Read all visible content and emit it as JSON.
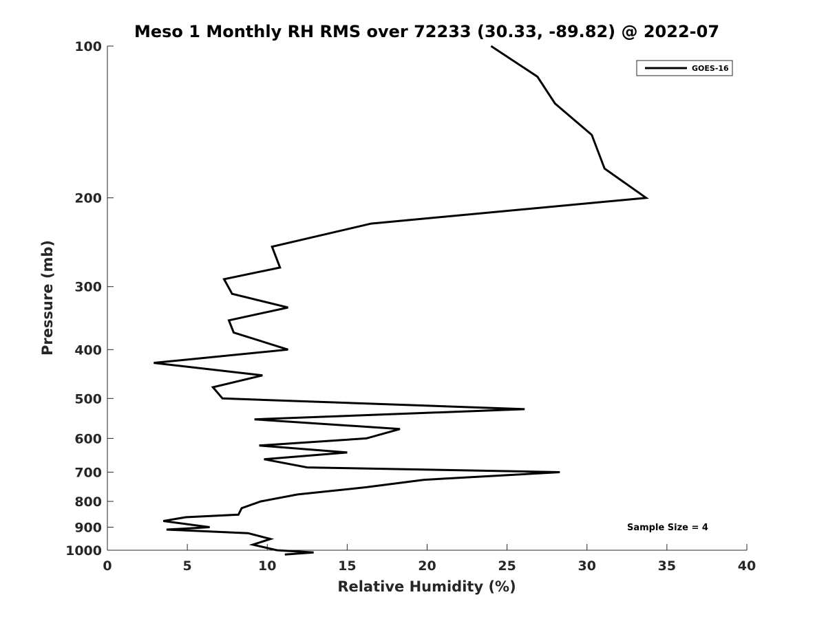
{
  "chart_data": {
    "type": "line",
    "title": "Meso 1 Monthly RH RMS over 72233 (30.33, -89.82) @ 2022-07",
    "xlabel": "Relative Humidity (%)",
    "ylabel": "Pressure (mb)",
    "xlim": [
      0,
      40
    ],
    "ylim": [
      100,
      1000
    ],
    "y_scale": "log",
    "y_reversed": true,
    "grid": false,
    "legend_position": "top-right",
    "xticks": [
      0,
      5,
      10,
      15,
      20,
      25,
      30,
      35,
      40
    ],
    "xtick_labels": [
      "0",
      "5",
      "10",
      "15",
      "20",
      "25",
      "30",
      "35",
      "40"
    ],
    "yticks": [
      100,
      200,
      300,
      400,
      500,
      600,
      700,
      800,
      900,
      1000
    ],
    "ytick_labels": [
      "100",
      "200",
      "300",
      "400",
      "500",
      "600",
      "700",
      "800",
      "900",
      "1000"
    ],
    "series": [
      {
        "name": "GOES-16",
        "color": "#000000",
        "x": [
          24.0,
          26.9,
          28.0,
          30.3,
          31.1,
          33.7,
          16.5,
          10.3,
          10.8,
          7.3,
          7.8,
          11.3,
          7.6,
          7.9,
          11.3,
          2.9,
          9.7,
          6.6,
          7.2,
          26.1,
          9.2,
          18.3,
          16.2,
          9.5,
          15.0,
          9.8,
          12.5,
          28.3,
          19.8,
          16.2,
          11.9,
          9.6,
          8.4,
          8.2,
          4.9,
          3.5,
          6.4,
          3.7,
          8.8,
          10.2,
          9.1,
          10.6,
          12.9,
          11.1
        ],
        "y": [
          100,
          115,
          130,
          150,
          175,
          200,
          225,
          250,
          275,
          290,
          310,
          330,
          350,
          370,
          400,
          425,
          450,
          475,
          500,
          525,
          550,
          575,
          600,
          620,
          640,
          660,
          685,
          700,
          725,
          750,
          775,
          800,
          825,
          850,
          860,
          875,
          900,
          910,
          925,
          950,
          975,
          1000,
          1010,
          1020
        ]
      }
    ],
    "annotations": [
      "Sample Size = 4"
    ]
  }
}
